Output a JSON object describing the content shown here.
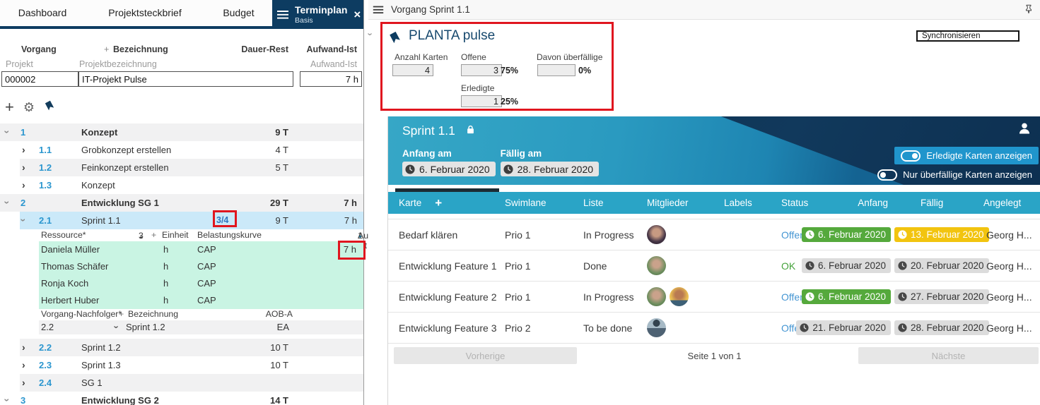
{
  "left_panel": {
    "tabs": {
      "dashboard": "Dashboard",
      "projektsteckbrief": "Projektsteckbrief",
      "budget": "Budget",
      "terminplan": "Terminplan",
      "terminplan_sub": "Basis",
      "close": "×"
    },
    "grid": {
      "col_vorgang": "Vorgang",
      "plus": "+",
      "col_bezeichnung": "Bezeichnung",
      "col_dauer": "Dauer-Rest",
      "col_aufwand": "Aufwand-Ist",
      "sub_projekt": "Projekt",
      "sub_bezeichnung": "Projektbezeichnung",
      "sub_aufwand": "Aufwand-Ist",
      "project_id": "000002",
      "project_name": "IT-Projekt Pulse",
      "project_aufwand": "7 h"
    },
    "toolbar": {
      "plus": "+",
      "gear": "⚙"
    },
    "tree_a": [
      {
        "num": "1",
        "chev": "down",
        "label": "Konzept",
        "dauer": "9 T",
        "aufwand": "",
        "bold": true,
        "band": "gray"
      },
      {
        "num": "1.1",
        "chev": "right",
        "label": "Grobkonzept erstellen",
        "dauer": "4 T",
        "aufwand": "",
        "lv2": true
      },
      {
        "num": "1.2",
        "chev": "right",
        "label": "Feinkonzept erstellen",
        "dauer": "5 T",
        "aufwand": "",
        "lv2": true,
        "band": "gray"
      },
      {
        "num": "1.3",
        "chev": "right",
        "label": "Konzept",
        "dauer": "",
        "aufwand": "",
        "lv2": true
      },
      {
        "num": "2",
        "chev": "down",
        "label": "Entwicklung SG 1",
        "dauer": "29 T",
        "aufwand": "7 h",
        "bold": true,
        "band": "gray"
      },
      {
        "num": "2.1",
        "chev": "down",
        "label": "Sprint 1.1",
        "badge": "3/4",
        "dauer": "9 T",
        "aufwand": "7 h",
        "lv2": true,
        "band": "sel"
      }
    ],
    "resource": {
      "header": {
        "title": "Ressource*",
        "sort": "3",
        "plus": "+",
        "einheit": "Einheit",
        "kurve": "Belastungskurve",
        "aufwand": "Aufwand-Ist",
        "sort2": "1"
      },
      "rows": [
        {
          "name": "Daniela Müller",
          "einheit": "h",
          "kurve": "CAP",
          "aufwand": "7 h"
        },
        {
          "name": "Thomas Schäfer",
          "einheit": "h",
          "kurve": "CAP",
          "aufwand": ""
        },
        {
          "name": "Ronja Koch",
          "einheit": "h",
          "kurve": "CAP",
          "aufwand": ""
        },
        {
          "name": "Herbert Huber",
          "einheit": "h",
          "kurve": "CAP",
          "aufwand": ""
        }
      ]
    },
    "successor": {
      "header": {
        "title": "Vorgang-Nachfolger*",
        "plus": "+",
        "bezeichnung": "Bezeichnung",
        "aob": "AOB-A"
      },
      "row": {
        "num": "2.2",
        "name": "Sprint 1.2",
        "value": "EA"
      }
    },
    "tree_b": [
      {
        "num": "2.2",
        "chev": "right",
        "label": "Sprint 1.2",
        "dauer": "10 T",
        "aufwand": "",
        "lv2": true,
        "band": "gray"
      },
      {
        "num": "2.3",
        "chev": "right",
        "label": "Sprint 1.3",
        "dauer": "10 T",
        "aufwand": "",
        "lv2": true
      },
      {
        "num": "2.4",
        "chev": "right",
        "label": "SG 1",
        "dauer": "",
        "aufwand": "",
        "lv2": true,
        "band": "gray"
      },
      {
        "num": "3",
        "chev": "down",
        "label": "Entwicklung SG 2",
        "dauer": "14 T",
        "aufwand": "",
        "bold": true
      }
    ]
  },
  "right_panel": {
    "header": {
      "title": "Vorgang Sprint 1.1"
    },
    "sync_label": "Synchronisieren",
    "pulse": {
      "title": "PLANTA pulse",
      "anzahl_label": "Anzahl Karten",
      "anzahl_value": "4",
      "offene_label": "Offene",
      "offene_value": "3",
      "offene_pct": "75%",
      "ueber_label": "Davon überfällige",
      "ueber_value": "",
      "ueber_pct": "0%",
      "erledigte_label": "Erledigte",
      "erledigte_value": "1",
      "erledigte_pct": "25%"
    },
    "sprint": {
      "title": "Sprint 1.1",
      "anfang_label": "Anfang am",
      "anfang_value": "6. Februar 2020",
      "faellig_label": "Fällig am",
      "faellig_value": "28. Februar 2020",
      "toggles": [
        {
          "label": "Erledigte Karten anzeigen",
          "on": true,
          "highlight": true
        },
        {
          "label": "Nur überfällige Karten anzeigen",
          "on": false
        }
      ]
    },
    "board": {
      "columns": [
        "Karte",
        "Swimlane",
        "Liste",
        "Mitglieder",
        "Labels",
        "Status",
        "Anfang",
        "Fällig",
        "Angelegt"
      ],
      "add_card": "+",
      "rows": [
        {
          "karte": "Bedarf klären",
          "swimlane": "Prio 1",
          "liste": "In Progress",
          "avatars": [
            "av1"
          ],
          "labels": "",
          "status": "Offen",
          "status_kind": "open",
          "anfang": "6. Februar 2020",
          "anfang_style": "green",
          "faellig": "13. Februar 2020",
          "faellig_style": "yellow",
          "angelegt": "Georg H..."
        },
        {
          "karte": "Entwicklung Feature 1",
          "swimlane": "Prio 1",
          "liste": "Done",
          "avatars": [
            "av2"
          ],
          "labels": "",
          "status": "OK",
          "status_kind": "ok",
          "anfang": "6. Februar 2020",
          "anfang_style": "gray",
          "faellig": "20. Februar 2020",
          "faellig_style": "gray",
          "angelegt": "Georg H..."
        },
        {
          "karte": "Entwicklung Feature 2",
          "swimlane": "Prio 1",
          "liste": "In Progress",
          "avatars": [
            "av2",
            "av3"
          ],
          "labels": "",
          "status": "Offen",
          "status_kind": "open",
          "anfang": "6. Februar 2020",
          "anfang_style": "green",
          "faellig": "27. Februar 2020",
          "faellig_style": "gray",
          "angelegt": "Georg H..."
        },
        {
          "karte": "Entwicklung Feature 3",
          "swimlane": "Prio 2",
          "liste": "To be done",
          "avatars": [
            "av4"
          ],
          "labels": "",
          "status": "Offen",
          "status_kind": "open",
          "anfang": "21. Februar 2020",
          "anfang_style": "gray",
          "faellig": "28. Februar 2020",
          "faellig_style": "gray",
          "angelegt": "Georg H..."
        }
      ]
    },
    "pagination": {
      "prev": "Vorherige",
      "page": "Seite 1 von 1",
      "next": "Nächste"
    }
  },
  "colors": {
    "navy": "#0d3c61",
    "board_header_teal": "#2aa4c6",
    "sprint_gradient_start": "#36a7c6",
    "sprint_navy": "#0d3051",
    "annotation_red": "#e0161f",
    "pill_green": "#55a93c",
    "pill_yellow": "#f2c40f",
    "pill_gray": "#dcdcdc",
    "status_open": "#4596d3",
    "status_ok": "#46a33c",
    "selected_row": "#cbe9f9",
    "resource_row": "#c9f4e3",
    "row_stripe": "#f1f1f2"
  }
}
